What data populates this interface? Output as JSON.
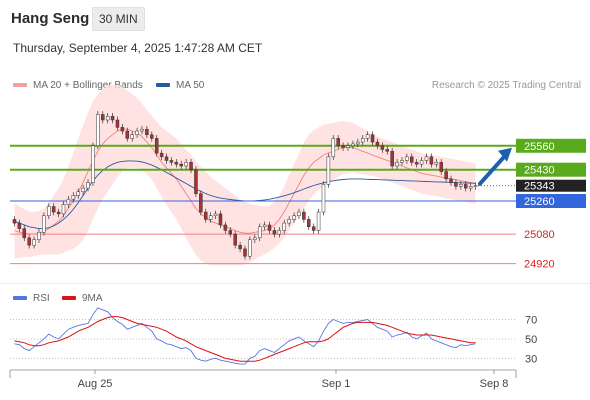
{
  "instrument": "Hang Seng",
  "timeframe": "30 MIN",
  "datetime": "Thursday, September 4, 2025 1:47:28 AM CET",
  "legend": {
    "ma20_label": "MA 20 + Bollinger Bands",
    "ma50_label": "MA 50",
    "rsi_label": "RSI",
    "ma9_label": "9MA"
  },
  "credit": "Research © 2025 Trading Central",
  "colors": {
    "bollinger_fill": "#ffdede",
    "ma20": "#f08080",
    "ma50": "#2a5a9e",
    "resistance": "#5aaa1e",
    "pivot": "#3366dd",
    "support": "#f08080",
    "candle_up": "#ffffff",
    "candle_down": "#a83232",
    "arrow": "#1f5fb0",
    "rsi": "#5577dd",
    "rsi_ma": "#dd1111"
  },
  "chart_data": [
    {
      "type": "candlestick",
      "title": "Hang Seng",
      "ylim": [
        24820,
        25700
      ],
      "x_ticks": [
        "Aug 25",
        "Sep 1",
        "Sep 8"
      ],
      "current_price": 25343,
      "levels": [
        {
          "label": "25560",
          "value": 25560,
          "kind": "resistance"
        },
        {
          "label": "25430",
          "value": 25430,
          "kind": "resistance"
        },
        {
          "label": "25260",
          "value": 25260,
          "kind": "pivot"
        },
        {
          "label": "25080",
          "value": 25080,
          "kind": "support"
        },
        {
          "label": "24920",
          "value": 24920,
          "kind": "support"
        }
      ],
      "current_price_label": "25343",
      "closes": [
        25140,
        25110,
        25060,
        25020,
        25050,
        25090,
        25180,
        25230,
        25200,
        25190,
        25240,
        25270,
        25290,
        25310,
        25330,
        25360,
        25560,
        25730,
        25700,
        25720,
        25700,
        25660,
        25640,
        25600,
        25620,
        25640,
        25650,
        25620,
        25600,
        25520,
        25500,
        25480,
        25470,
        25460,
        25450,
        25470,
        25430,
        25300,
        25200,
        25160,
        25180,
        25190,
        25130,
        25100,
        25080,
        25020,
        25000,
        24960,
        25050,
        25060,
        25120,
        25130,
        25100,
        25080,
        25100,
        25140,
        25160,
        25180,
        25200,
        25160,
        25120,
        25100,
        25200,
        25350,
        25500,
        25600,
        25560,
        25550,
        25560,
        25570,
        25580,
        25600,
        25620,
        25580,
        25560,
        25540,
        25530,
        25450,
        25470,
        25480,
        25500,
        25470,
        25460,
        25480,
        25500,
        25460,
        25470,
        25420,
        25380,
        25360,
        25340,
        25350,
        25330,
        25340,
        25343
      ],
      "ma20": [
        25100,
        25090,
        25085,
        25080,
        25080,
        25085,
        25095,
        25110,
        25130,
        25150,
        25180,
        25220,
        25260,
        25310,
        25360,
        25420,
        25480,
        25530,
        25570,
        25600,
        25620,
        25640,
        25650,
        25650,
        25640,
        25630,
        25610,
        25580,
        25550,
        25510,
        25470,
        25440,
        25410,
        25380,
        25340,
        25300,
        25260,
        25220,
        25190,
        25170,
        25150,
        25140,
        25130,
        25120,
        25110,
        25100,
        25090,
        25085,
        25085,
        25090,
        25095,
        25100,
        25110,
        25130,
        25160,
        25200,
        25250,
        25300,
        25350,
        25400,
        25440,
        25470,
        25490,
        25510,
        25520,
        25530,
        25540,
        25550,
        25550,
        25550,
        25540,
        25530,
        25520,
        25510,
        25500,
        25490,
        25480,
        25470,
        25460,
        25450,
        25440,
        25430,
        25420,
        25410,
        25405,
        25400,
        25395,
        25390,
        25385,
        25380,
        25375,
        25370,
        25365,
        25360,
        25355
      ],
      "ma50": [
        25150,
        25140,
        25130,
        25120,
        25115,
        25110,
        25110,
        25115,
        25125,
        25140,
        25160,
        25185,
        25215,
        25250,
        25290,
        25330,
        25370,
        25400,
        25425,
        25445,
        25460,
        25470,
        25475,
        25478,
        25478,
        25476,
        25472,
        25465,
        25455,
        25443,
        25430,
        25415,
        25400,
        25385,
        25370,
        25355,
        25340,
        25325,
        25312,
        25300,
        25290,
        25282,
        25276,
        25272,
        25268,
        25265,
        25262,
        25260,
        25260,
        25261,
        25263,
        25266,
        25270,
        25275,
        25281,
        25288,
        25296,
        25305,
        25315,
        25325,
        25335,
        25344,
        25352,
        25359,
        25365,
        25370,
        25374,
        25377,
        25379,
        25380,
        25380,
        25379,
        25378,
        25377,
        25376,
        25375,
        25374,
        25373,
        25372,
        25371,
        25370,
        25369,
        25368,
        25367,
        25366,
        25365,
        25364,
        25363,
        25362,
        25361,
        25360,
        25359,
        25358,
        25357,
        25356
      ],
      "bollinger_width": [
        150,
        140,
        130,
        125,
        120,
        120,
        125,
        140,
        160,
        180,
        200,
        230,
        260,
        290,
        310,
        320,
        320,
        310,
        300,
        290,
        270,
        250,
        230,
        210,
        200,
        190,
        180,
        175,
        175,
        180,
        190,
        200,
        210,
        220,
        230,
        240,
        250,
        255,
        255,
        250,
        240,
        230,
        220,
        210,
        200,
        190,
        180,
        170,
        160,
        150,
        140,
        130,
        125,
        125,
        130,
        140,
        150,
        160,
        170,
        180,
        180,
        175,
        170,
        165,
        160,
        155,
        150,
        145,
        140,
        135,
        130,
        125,
        120,
        115,
        110,
        110,
        110,
        110,
        110,
        110,
        110,
        110,
        110,
        110,
        110,
        110,
        110,
        110,
        110,
        110,
        110,
        110,
        110,
        110,
        110
      ]
    },
    {
      "type": "line",
      "title": "RSI",
      "ylim": [
        20,
        85
      ],
      "y_ticks": [
        "70",
        "50",
        "30"
      ],
      "series": [
        {
          "name": "RSI",
          "values": [
            45,
            44,
            40,
            38,
            42,
            46,
            50,
            55,
            52,
            50,
            55,
            60,
            62,
            64,
            65,
            66,
            75,
            82,
            80,
            78,
            72,
            68,
            65,
            60,
            62,
            64,
            66,
            62,
            58,
            50,
            48,
            45,
            44,
            42,
            40,
            41,
            38,
            30,
            28,
            27,
            29,
            30,
            28,
            27,
            26,
            25,
            24,
            24,
            30,
            32,
            38,
            40,
            38,
            36,
            40,
            44,
            48,
            50,
            52,
            48,
            45,
            42,
            48,
            58,
            66,
            70,
            68,
            66,
            67,
            67,
            68,
            69,
            70,
            66,
            62,
            60,
            58,
            52,
            54,
            55,
            57,
            52,
            50,
            53,
            56,
            50,
            48,
            46,
            44,
            42,
            41,
            44,
            43,
            44,
            45
          ]
        },
        {
          "name": "9MA",
          "values": [
            48,
            47,
            46,
            44,
            43,
            43,
            44,
            46,
            47,
            48,
            50,
            52,
            55,
            58,
            60,
            62,
            65,
            68,
            70,
            72,
            73,
            73,
            72,
            70,
            68,
            66,
            65,
            64,
            63,
            62,
            60,
            58,
            55,
            52,
            50,
            48,
            45,
            42,
            40,
            38,
            36,
            34,
            32,
            30,
            29,
            28,
            27,
            27,
            27,
            27,
            28,
            30,
            32,
            34,
            36,
            38,
            40,
            42,
            44,
            46,
            47,
            47,
            47,
            48,
            50,
            54,
            58,
            62,
            64,
            66,
            67,
            67,
            67,
            67,
            66,
            65,
            64,
            62,
            60,
            58,
            56,
            55,
            54,
            54,
            54,
            54,
            53,
            52,
            51,
            50,
            49,
            48,
            47,
            46,
            46
          ]
        }
      ]
    }
  ]
}
